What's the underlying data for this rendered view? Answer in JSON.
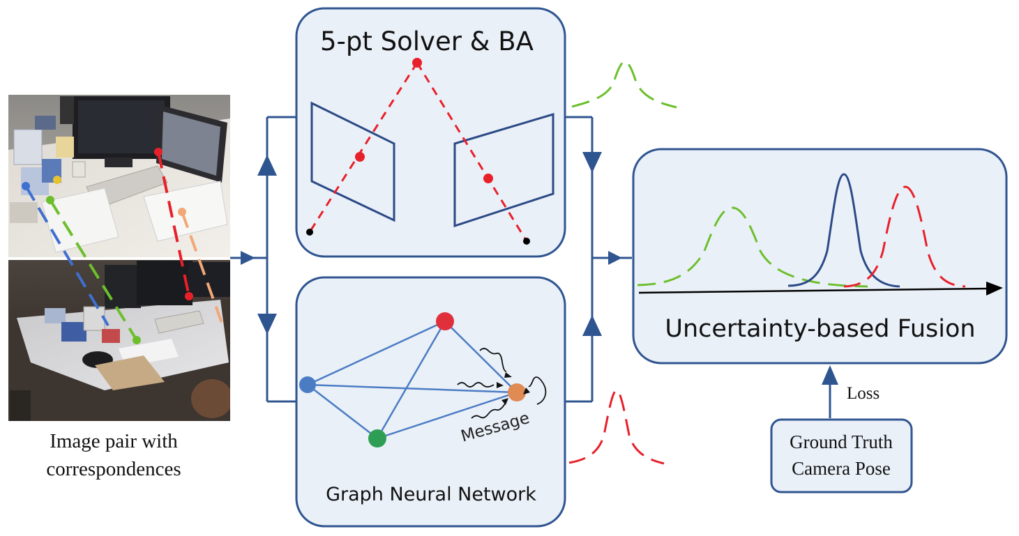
{
  "colors": {
    "box_fill": "#eaf0f8",
    "box_stroke": "#2f5590",
    "connector": "#2f5590",
    "green": "#6cbf2c",
    "red": "#e8202a",
    "navy": "#2b4a86",
    "orange_node": "#e08a54",
    "blue_node": "#4a7cc4",
    "green_node": "#2e9e55",
    "red_node": "#e0303c",
    "peach": "#f2a777",
    "desk_blue": "#3f6fd0"
  },
  "solver": {
    "title": "5-pt Solver & BA"
  },
  "gnn": {
    "title": "Graph Neural Network",
    "message_label": "Message"
  },
  "fusion": {
    "title": "Uncertainty-based Fusion"
  },
  "input": {
    "caption_line1": "Image pair with",
    "caption_line2": "correspondences"
  },
  "ground_truth": {
    "line1": "Ground Truth",
    "line2": "Camera Pose"
  },
  "loss": {
    "label": "Loss"
  }
}
